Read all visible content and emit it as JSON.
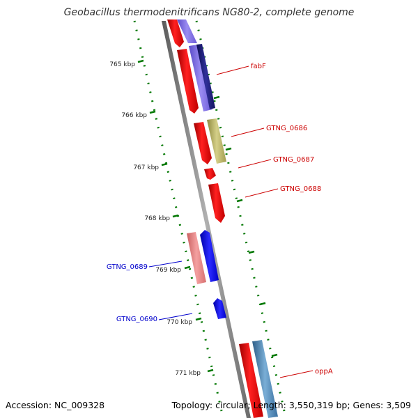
{
  "title": "Geobacillus thermodenitrificans NG80-2, complete genome",
  "accession": "Accession: NC_009328",
  "summary": "Topology: circular; Length: 3,550,319 bp; Genes: 3,509",
  "ticks": [
    "765 kbp",
    "766 kbp",
    "767 kbp",
    "768 kbp",
    "769 kbp",
    "770 kbp",
    "771 kbp"
  ],
  "gene_labels": {
    "fabF": "fabF",
    "gtng0686": "GTNG_0686",
    "gtng0687": "GTNG_0687",
    "gtng0688": "GTNG_0688",
    "gtng0689": "GTNG_0689",
    "gtng0690": "GTNG_0690",
    "oppA": "oppA"
  },
  "colors": {
    "forward_label": "#cc0000",
    "reverse_label": "#0000cc",
    "cds": "#ff0000",
    "cds_light": "#f08080",
    "gene_purple": "#7b68ee",
    "gene_navy": "#191970",
    "gene_olive": "#bdb76b",
    "gene_blue": "#0000ff",
    "gene_steel": "#4682b4",
    "tick": "#007700",
    "backbone": "#808080"
  }
}
